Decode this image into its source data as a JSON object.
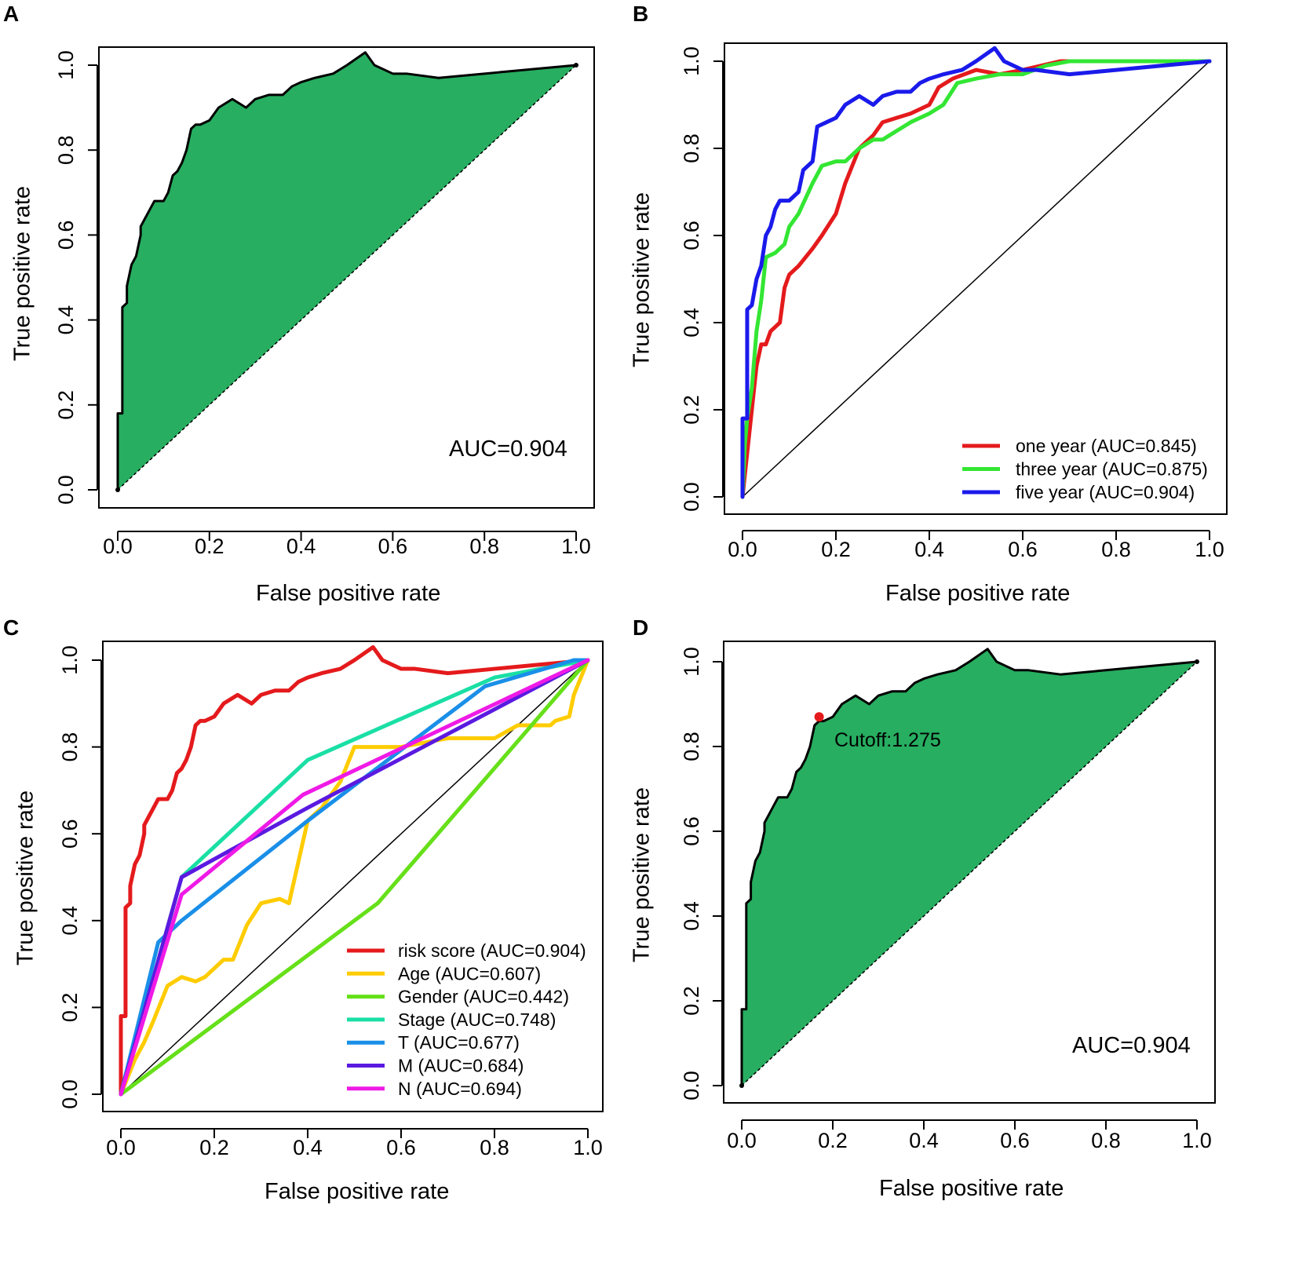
{
  "panels": [
    {
      "letter": "A",
      "xlabel": "False positive rate",
      "ylabel": "True positive rate"
    },
    {
      "letter": "B",
      "xlabel": "False positive rate",
      "ylabel": "True positive rate"
    },
    {
      "letter": "C",
      "xlabel": "False positive rate",
      "ylabel": "True positive rate"
    },
    {
      "letter": "D",
      "xlabel": "False positive rate",
      "ylabel": "True positive rate"
    }
  ],
  "chart_data": [
    {
      "panel": "A",
      "type": "area",
      "title": "",
      "xlabel": "False positive rate",
      "ylabel": "True positive rate",
      "xlim": [
        0,
        1
      ],
      "ylim": [
        0,
        1
      ],
      "xticks": [
        "0.0",
        "0.2",
        "0.4",
        "0.6",
        "0.8",
        "1.0"
      ],
      "yticks": [
        "0.0",
        "0.2",
        "0.4",
        "0.6",
        "0.8",
        "1.0"
      ],
      "fill_color": "#27ae60",
      "annotation": "AUC=0.904",
      "series": [
        {
          "name": "ROC",
          "color": "#000000",
          "x": [
            0,
            0,
            0.01,
            0.01,
            0.02,
            0.02,
            0.03,
            0.04,
            0.05,
            0.05,
            0.06,
            0.07,
            0.08,
            0.09,
            0.1,
            0.11,
            0.12,
            0.13,
            0.14,
            0.15,
            0.16,
            0.17,
            0.18,
            0.2,
            0.22,
            0.25,
            0.28,
            0.3,
            0.33,
            0.36,
            0.38,
            0.4,
            0.43,
            0.47,
            0.5,
            0.54,
            0.56,
            0.6,
            0.63,
            0.7,
            0.8,
            0.9,
            1.0
          ],
          "y": [
            0,
            0.18,
            0.18,
            0.43,
            0.44,
            0.48,
            0.53,
            0.55,
            0.6,
            0.62,
            0.64,
            0.66,
            0.68,
            0.68,
            0.68,
            0.7,
            0.74,
            0.75,
            0.77,
            0.8,
            0.85,
            0.86,
            0.86,
            0.87,
            0.9,
            0.92,
            0.9,
            0.92,
            0.93,
            0.93,
            0.95,
            0.96,
            0.97,
            0.98,
            1.0,
            1.03,
            1.0,
            0.98,
            0.98,
            0.97,
            0.98,
            0.99,
            1.0
          ]
        }
      ]
    },
    {
      "panel": "B",
      "type": "line",
      "title": "",
      "xlabel": "False positive rate",
      "ylabel": "True positive rate",
      "xlim": [
        0,
        1
      ],
      "ylim": [
        0,
        1
      ],
      "xticks": [
        "0.0",
        "0.2",
        "0.4",
        "0.6",
        "0.8",
        "1.0"
      ],
      "yticks": [
        "0.0",
        "0.2",
        "0.4",
        "0.6",
        "0.8",
        "1.0"
      ],
      "legend_position": "bottom-right",
      "series": [
        {
          "name": "one year (AUC=0.845)",
          "color": "#e41a1c",
          "x": [
            0,
            0.005,
            0.01,
            0.02,
            0.03,
            0.04,
            0.05,
            0.06,
            0.08,
            0.09,
            0.1,
            0.12,
            0.15,
            0.17,
            0.2,
            0.22,
            0.25,
            0.28,
            0.3,
            0.33,
            0.36,
            0.4,
            0.42,
            0.45,
            0.5,
            0.55,
            0.6,
            0.68,
            0.75,
            0.8,
            0.9,
            1.0
          ],
          "y": [
            0,
            0.05,
            0.1,
            0.2,
            0.3,
            0.35,
            0.35,
            0.38,
            0.4,
            0.48,
            0.51,
            0.53,
            0.57,
            0.6,
            0.65,
            0.72,
            0.8,
            0.83,
            0.86,
            0.87,
            0.88,
            0.9,
            0.94,
            0.96,
            0.98,
            0.97,
            0.98,
            1.0,
            1.0,
            1.0,
            1.0,
            1.0
          ]
        },
        {
          "name": "three year (AUC=0.875)",
          "color": "#33e633",
          "x": [
            0,
            0.005,
            0.01,
            0.02,
            0.03,
            0.04,
            0.05,
            0.07,
            0.09,
            0.1,
            0.12,
            0.15,
            0.17,
            0.2,
            0.22,
            0.25,
            0.28,
            0.3,
            0.33,
            0.36,
            0.4,
            0.43,
            0.46,
            0.5,
            0.55,
            0.6,
            0.65,
            0.7,
            0.8,
            0.9,
            1.0
          ],
          "y": [
            0,
            0.12,
            0.18,
            0.25,
            0.38,
            0.45,
            0.55,
            0.56,
            0.58,
            0.62,
            0.65,
            0.72,
            0.76,
            0.77,
            0.77,
            0.8,
            0.82,
            0.82,
            0.84,
            0.86,
            0.88,
            0.9,
            0.95,
            0.96,
            0.97,
            0.97,
            0.99,
            1.0,
            1.0,
            1.0,
            1.0
          ]
        },
        {
          "name": "five year (AUC=0.904)",
          "color": "#1a1aeb",
          "x": [
            0,
            0,
            0.01,
            0.01,
            0.02,
            0.03,
            0.04,
            0.05,
            0.06,
            0.07,
            0.08,
            0.1,
            0.12,
            0.13,
            0.15,
            0.16,
            0.18,
            0.2,
            0.22,
            0.25,
            0.28,
            0.3,
            0.33,
            0.36,
            0.38,
            0.4,
            0.43,
            0.47,
            0.5,
            0.54,
            0.56,
            0.6,
            0.63,
            0.7,
            0.8,
            0.9,
            1.0
          ],
          "y": [
            0,
            0.18,
            0.18,
            0.43,
            0.44,
            0.5,
            0.53,
            0.6,
            0.62,
            0.66,
            0.68,
            0.68,
            0.7,
            0.75,
            0.77,
            0.85,
            0.86,
            0.87,
            0.9,
            0.92,
            0.9,
            0.92,
            0.93,
            0.93,
            0.95,
            0.96,
            0.97,
            0.98,
            1.0,
            1.03,
            1.0,
            0.98,
            0.98,
            0.97,
            0.98,
            0.99,
            1.0
          ]
        }
      ]
    },
    {
      "panel": "C",
      "type": "line",
      "title": "",
      "xlabel": "False positive rate",
      "ylabel": "True positive rate",
      "xlim": [
        0,
        1
      ],
      "ylim": [
        0,
        1
      ],
      "xticks": [
        "0.0",
        "0.2",
        "0.4",
        "0.6",
        "0.8",
        "1.0"
      ],
      "yticks": [
        "0.0",
        "0.2",
        "0.4",
        "0.6",
        "0.8",
        "1.0"
      ],
      "legend_position": "bottom-right",
      "series": [
        {
          "name": "risk score (AUC=0.904)",
          "color": "#e41a1c",
          "x": [
            0,
            0,
            0.01,
            0.01,
            0.02,
            0.02,
            0.03,
            0.04,
            0.05,
            0.05,
            0.06,
            0.07,
            0.08,
            0.09,
            0.1,
            0.11,
            0.12,
            0.13,
            0.14,
            0.15,
            0.16,
            0.17,
            0.18,
            0.2,
            0.22,
            0.25,
            0.28,
            0.3,
            0.33,
            0.36,
            0.38,
            0.4,
            0.43,
            0.47,
            0.5,
            0.54,
            0.56,
            0.6,
            0.63,
            0.7,
            0.8,
            0.9,
            1.0
          ],
          "y": [
            0,
            0.18,
            0.18,
            0.43,
            0.44,
            0.48,
            0.53,
            0.55,
            0.6,
            0.62,
            0.64,
            0.66,
            0.68,
            0.68,
            0.68,
            0.7,
            0.74,
            0.75,
            0.77,
            0.8,
            0.85,
            0.86,
            0.86,
            0.87,
            0.9,
            0.92,
            0.9,
            0.92,
            0.93,
            0.93,
            0.95,
            0.96,
            0.97,
            0.98,
            1.0,
            1.03,
            1.0,
            0.98,
            0.98,
            0.97,
            0.98,
            0.99,
            1.0
          ]
        },
        {
          "name": "Age (AUC=0.607)",
          "color": "#ffcc00",
          "x": [
            0,
            0.03,
            0.05,
            0.07,
            0.1,
            0.13,
            0.16,
            0.18,
            0.22,
            0.24,
            0.27,
            0.3,
            0.34,
            0.36,
            0.4,
            0.43,
            0.47,
            0.5,
            0.6,
            0.7,
            0.8,
            0.85,
            0.92,
            0.93,
            0.96,
            0.97,
            1.0
          ],
          "y": [
            0,
            0.08,
            0.12,
            0.17,
            0.25,
            0.27,
            0.26,
            0.27,
            0.31,
            0.31,
            0.39,
            0.44,
            0.45,
            0.44,
            0.63,
            0.66,
            0.72,
            0.8,
            0.8,
            0.82,
            0.82,
            0.85,
            0.85,
            0.86,
            0.87,
            0.92,
            1.0
          ]
        },
        {
          "name": "Gender (AUC=0.442)",
          "color": "#66e019",
          "x": [
            0,
            0.55,
            1.0
          ],
          "y": [
            0,
            0.44,
            1.0
          ]
        },
        {
          "name": "Stage (AUC=0.748)",
          "color": "#1adfa5",
          "x": [
            0,
            0.13,
            0.4,
            0.8,
            1.0
          ],
          "y": [
            0,
            0.5,
            0.77,
            0.96,
            1.0
          ]
        },
        {
          "name": "T (AUC=0.677)",
          "color": "#1a8fe8",
          "x": [
            0,
            0.08,
            0.13,
            0.4,
            0.78,
            0.97,
            1.0
          ],
          "y": [
            0,
            0.35,
            0.4,
            0.63,
            0.94,
            1.0,
            1.0
          ]
        },
        {
          "name": "M (AUC=0.684)",
          "color": "#5a1ae0",
          "x": [
            0,
            0.13,
            0.4,
            1.0
          ],
          "y": [
            0,
            0.5,
            0.66,
            1.0
          ]
        },
        {
          "name": "N (AUC=0.694)",
          "color": "#ef1ae6",
          "x": [
            0,
            0.13,
            0.39,
            1.0
          ],
          "y": [
            0,
            0.46,
            0.69,
            1.0
          ]
        }
      ]
    },
    {
      "panel": "D",
      "type": "area",
      "title": "",
      "xlabel": "False positive rate",
      "ylabel": "True positive rate",
      "xlim": [
        0,
        1
      ],
      "ylim": [
        0,
        1
      ],
      "xticks": [
        "0.0",
        "0.2",
        "0.4",
        "0.6",
        "0.8",
        "1.0"
      ],
      "yticks": [
        "0.0",
        "0.2",
        "0.4",
        "0.6",
        "0.8",
        "1.0"
      ],
      "fill_color": "#27ae60",
      "annotation": "AUC=0.904",
      "cutoff": {
        "label": "Cutoff:1.275",
        "x": 0.17,
        "y": 0.87,
        "color": "#e41a1c"
      },
      "series": [
        {
          "name": "ROC",
          "color": "#000000",
          "x": [
            0,
            0,
            0.01,
            0.01,
            0.02,
            0.02,
            0.03,
            0.04,
            0.05,
            0.05,
            0.06,
            0.07,
            0.08,
            0.09,
            0.1,
            0.11,
            0.12,
            0.13,
            0.14,
            0.15,
            0.16,
            0.17,
            0.18,
            0.2,
            0.22,
            0.25,
            0.28,
            0.3,
            0.33,
            0.36,
            0.38,
            0.4,
            0.43,
            0.47,
            0.5,
            0.54,
            0.56,
            0.6,
            0.63,
            0.7,
            0.8,
            0.9,
            1.0
          ],
          "y": [
            0,
            0.18,
            0.18,
            0.43,
            0.44,
            0.48,
            0.53,
            0.55,
            0.6,
            0.62,
            0.64,
            0.66,
            0.68,
            0.68,
            0.68,
            0.7,
            0.74,
            0.75,
            0.77,
            0.8,
            0.85,
            0.86,
            0.86,
            0.87,
            0.9,
            0.92,
            0.9,
            0.92,
            0.93,
            0.93,
            0.95,
            0.96,
            0.97,
            0.98,
            1.0,
            1.03,
            1.0,
            0.98,
            0.98,
            0.97,
            0.98,
            0.99,
            1.0
          ]
        }
      ]
    }
  ]
}
